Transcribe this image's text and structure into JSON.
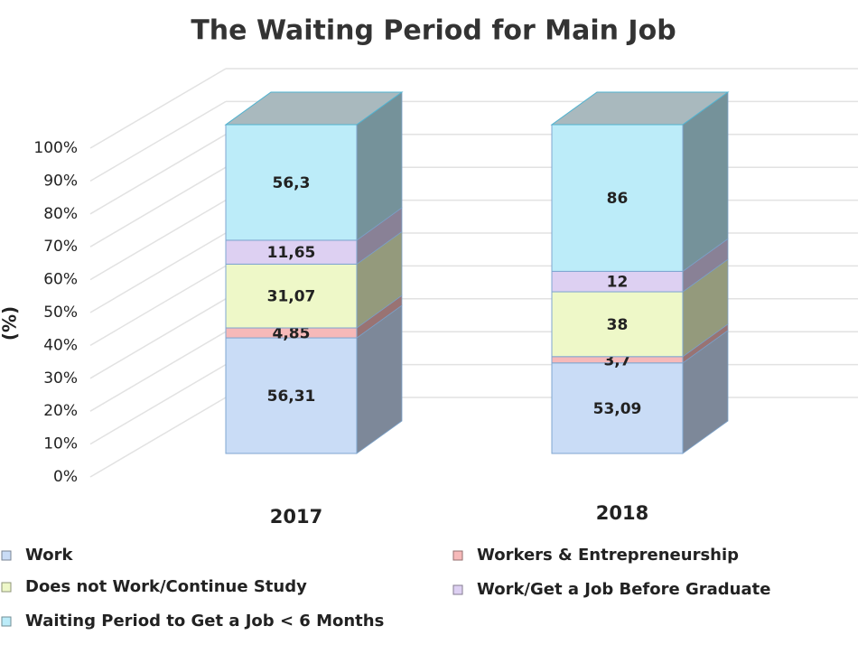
{
  "chart_data": {
    "type": "bar",
    "stacking": "percent",
    "three_d": true,
    "title": "The Waiting Period for Main Job",
    "y_label": "(%)",
    "categories": [
      "2017",
      "2018"
    ],
    "series": [
      {
        "name": "Work",
        "color": "#c9dcf6",
        "values": [
          56.31,
          53.09
        ],
        "value_labels": [
          "56,31",
          "53,09"
        ]
      },
      {
        "name": "Workers & Entrepreneurship",
        "color": "#f6b9b9",
        "values": [
          4.85,
          3.7
        ],
        "value_labels": [
          "4,85",
          "3,7"
        ]
      },
      {
        "name": "Does not Work/Continue Study",
        "color": "#eef8c8",
        "values": [
          31.07,
          38
        ],
        "value_labels": [
          "31,07",
          "38"
        ]
      },
      {
        "name": "Work/Get a Job Before Graduate",
        "color": "#ddd0f2",
        "values": [
          11.65,
          12
        ],
        "value_labels": [
          "11,65",
          "12"
        ]
      },
      {
        "name": "Waiting Period to Get a Job < 6 Months",
        "color": "#bcecf9",
        "values": [
          56.3,
          86
        ],
        "value_labels": [
          "56,3",
          "86"
        ]
      }
    ],
    "ylim": [
      0,
      100
    ],
    "yticks": [
      {
        "value": 0,
        "label": "0%"
      },
      {
        "value": 10,
        "label": "10%"
      },
      {
        "value": 20,
        "label": "20%"
      },
      {
        "value": 30,
        "label": "30%"
      },
      {
        "value": 40,
        "label": "40%"
      },
      {
        "value": 50,
        "label": "50%"
      },
      {
        "value": 60,
        "label": "60%"
      },
      {
        "value": 70,
        "label": "70%"
      },
      {
        "value": 80,
        "label": "80%"
      },
      {
        "value": 90,
        "label": "90%"
      },
      {
        "value": 100,
        "label": "100%"
      }
    ],
    "grid": true
  }
}
